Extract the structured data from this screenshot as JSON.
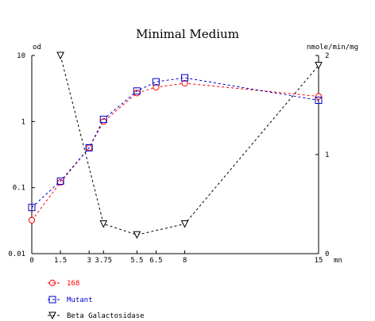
{
  "chart_data": {
    "type": "line",
    "title": "Minimal Medium",
    "xlabel": "mn",
    "ylabel_left": "od",
    "ylabel_right": "nmole/min/mg",
    "x_ticks": [
      "0",
      "1.5",
      "3",
      "3.75",
      "5.5",
      "6.5",
      "8",
      "15"
    ],
    "x_tick_values": [
      0,
      1.5,
      3,
      3.75,
      5.5,
      6.5,
      8,
      15
    ],
    "xlim": [
      0,
      15
    ],
    "y_left_scale": "log",
    "y_left_ticks": [
      "10",
      "1",
      "0.1",
      "0.01"
    ],
    "y_left_tick_values": [
      10,
      1,
      0.1,
      0.01
    ],
    "y_left_lim": [
      0.01,
      10
    ],
    "y_right_ticks": [
      "2",
      "1",
      "0"
    ],
    "y_right_tick_values": [
      2,
      1,
      0
    ],
    "y_right_lim": [
      0,
      2
    ],
    "grid": false,
    "legend_position": "bottom-left",
    "series": [
      {
        "name": "168",
        "axis": "left",
        "color": "#ff0000",
        "marker": "circle",
        "x": [
          0,
          1.5,
          3,
          3.75,
          5.5,
          6.5,
          8,
          15
        ],
        "y": [
          0.032,
          0.12,
          0.4,
          1.0,
          2.7,
          3.3,
          3.8,
          2.4
        ]
      },
      {
        "name": "Mutant",
        "axis": "left",
        "color": "#0000cc",
        "marker": "square",
        "x": [
          0,
          1.5,
          3,
          3.75,
          5.5,
          6.5,
          8,
          15
        ],
        "y": [
          0.05,
          0.125,
          0.4,
          1.08,
          2.9,
          4.0,
          4.6,
          2.1
        ]
      },
      {
        "name": "Beta Galactosidase",
        "axis": "right",
        "color": "#000000",
        "marker": "triangle-down",
        "x": [
          1.5,
          3.75,
          5.5,
          8,
          15
        ],
        "y": [
          2.0,
          0.3,
          0.19,
          0.3,
          1.9
        ]
      }
    ]
  }
}
